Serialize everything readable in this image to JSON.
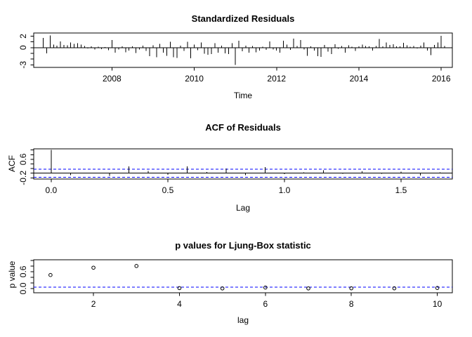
{
  "colors": {
    "background": "#ffffff",
    "axis": "#000000",
    "reference_line": "#0000ff"
  },
  "chart_data": [
    {
      "id": "standardized-residuals",
      "type": "bar",
      "title": "Standardized Residuals",
      "xlabel": "Time",
      "ylabel": "",
      "x_ticks": [
        2008,
        2010,
        2012,
        2014,
        2016
      ],
      "x_tick_labels": [
        "2008",
        "2010",
        "2012",
        "2014",
        "2016"
      ],
      "y_ticks": [
        -3,
        -2,
        -1,
        0,
        1,
        2
      ],
      "y_tick_labels": [
        {
          "value": -3,
          "label": "-3"
        },
        {
          "value": 0,
          "label": "0"
        },
        {
          "value": 2,
          "label": "2"
        }
      ],
      "xlim": [
        2006.1,
        2016.27
      ],
      "ylim": [
        -3.45,
        2.55
      ],
      "x_start": 2006.333,
      "x_step": 0.083333,
      "baseline": 0,
      "values": [
        1.7,
        -1.0,
        2.1,
        0.5,
        0.35,
        1.1,
        0.45,
        0.4,
        0.9,
        0.65,
        0.8,
        0.5,
        0.3,
        -0.15,
        0.25,
        -0.35,
        0.15,
        -0.25,
        0.1,
        -0.45,
        1.35,
        -0.9,
        -0.35,
        0.2,
        -0.8,
        -0.5,
        0.2,
        -0.95,
        -0.3,
        0.35,
        -0.6,
        -1.5,
        0.4,
        -1.7,
        0.65,
        -0.85,
        -1.4,
        1.05,
        -1.7,
        -1.8,
        0.35,
        -0.6,
        1.0,
        -1.85,
        0.55,
        -0.45,
        0.9,
        -1.05,
        -1.25,
        -1.15,
        0.8,
        -0.9,
        0.35,
        -1.0,
        -1.15,
        0.8,
        -3.05,
        1.2,
        -0.65,
        0.35,
        -0.85,
        0.3,
        -0.8,
        -0.5,
        0.15,
        -0.4,
        1.1,
        -0.3,
        -0.5,
        -0.9,
        1.2,
        0.5,
        -0.4,
        1.6,
        0.3,
        1.3,
        -0.35,
        -1.4,
        0.2,
        -0.5,
        -1.5,
        -1.6,
        0.45,
        -0.7,
        -1.1,
        0.6,
        -0.2,
        0.3,
        -0.9,
        0.4,
        0.15,
        -0.55,
        0.25,
        0.5,
        0.3,
        0.2,
        -0.5,
        0.3,
        1.5,
        0.2,
        0.9,
        0.45,
        0.6,
        0.2,
        0.25,
        0.85,
        0.4,
        0.15,
        0.3,
        -0.15,
        0.35,
        0.9,
        -0.5,
        -1.3,
        0.45,
        0.9,
        2.05,
        0.3
      ]
    },
    {
      "id": "acf-of-residuals",
      "type": "bar",
      "title": "ACF of Residuals",
      "xlabel": "Lag",
      "ylabel": "ACF",
      "x_ticks": [
        0.0,
        0.5,
        1.0,
        1.5
      ],
      "x_tick_labels": [
        "0.0",
        "0.5",
        "1.0",
        "1.5"
      ],
      "y_ticks": [
        -0.2,
        0,
        0.2,
        0.4,
        0.6,
        0.8,
        1
      ],
      "y_tick_labels": [
        {
          "value": -0.2,
          "label": "-0.2"
        },
        {
          "value": 0.6,
          "label": "0.6"
        }
      ],
      "xlim": [
        -0.075,
        1.72
      ],
      "ylim": [
        -0.25,
        1.05
      ],
      "x_start": 0,
      "x_step": 0.083333,
      "baseline": 0,
      "conf_band": 0.18,
      "values": [
        1.0,
        -0.09,
        0.02,
        -0.12,
        0.3,
        0.1,
        -0.07,
        0.29,
        0.05,
        0.21,
        -0.08,
        0.26,
        -0.04,
        0.04,
        0.13,
        -0.03,
        0.08,
        -0.02,
        0.06,
        -0.1,
        0.03
      ]
    },
    {
      "id": "ljung-box-p-values",
      "type": "scatter",
      "title": "p values for Ljung-Box statistic",
      "xlabel": "lag",
      "ylabel": "p value",
      "x_ticks": [
        2,
        4,
        6,
        8,
        10
      ],
      "x_tick_labels": [
        "2",
        "4",
        "6",
        "8",
        "10"
      ],
      "y_ticks": [
        0,
        0.2,
        0.4,
        0.6,
        0.8,
        1
      ],
      "y_tick_labels": [
        {
          "value": 0,
          "label": "0.0"
        },
        {
          "value": 0.6,
          "label": "0.6"
        }
      ],
      "xlim": [
        0.61,
        10.35
      ],
      "ylim": [
        -0.15,
        1.02
      ],
      "x": [
        1,
        2,
        3,
        4,
        5,
        6,
        7,
        8,
        9,
        10
      ],
      "values": [
        0.48,
        0.74,
        0.8,
        0.015,
        0.005,
        0.035,
        0.005,
        0.008,
        0.008,
        0.02
      ],
      "ref_line": 0.05
    }
  ]
}
